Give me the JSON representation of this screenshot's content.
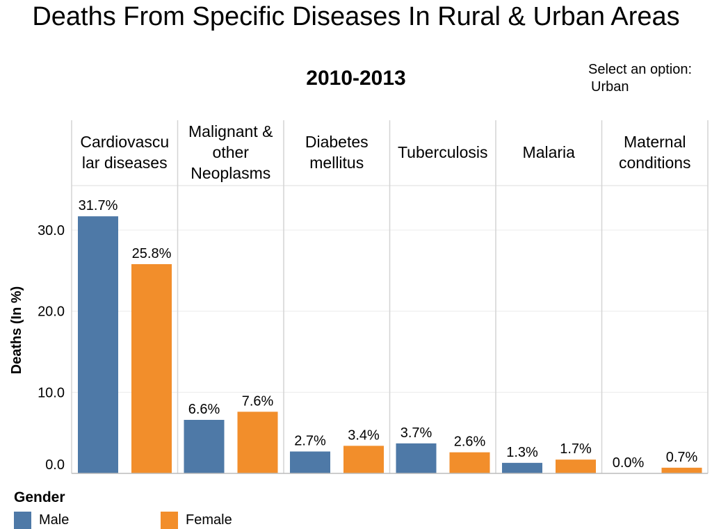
{
  "chart_data": {
    "type": "bar",
    "title": "Deaths From Specific Diseases In Rural & Urban Areas",
    "subtitle": "2010-2013",
    "ylabel": "Deaths (In %)",
    "ylim": [
      0,
      35
    ],
    "yticks": [
      "0.0",
      "10.0",
      "20.0",
      "30.0"
    ],
    "ytick_values": [
      0,
      10,
      20,
      30
    ],
    "grid": true,
    "categories": [
      "Cardiovascular diseases",
      "Malignant & other Neoplasms",
      "Diabetes mellitus",
      "Tuberculosis",
      "Malaria",
      "Maternal conditions"
    ],
    "category_label_lines": [
      [
        "Cardiovascu",
        "lar diseases"
      ],
      [
        "Malignant &",
        "other",
        "Neoplasms"
      ],
      [
        "Diabetes",
        "mellitus"
      ],
      [
        "Tuberculosis"
      ],
      [
        "Malaria"
      ],
      [
        "Maternal",
        "conditions"
      ]
    ],
    "series": [
      {
        "name": "Male",
        "color": "#4e79a7",
        "values": [
          31.7,
          6.6,
          2.7,
          3.7,
          1.3,
          0.0
        ],
        "labels": [
          "31.7%",
          "6.6%",
          "2.7%",
          "3.7%",
          "1.3%",
          "0.0%"
        ]
      },
      {
        "name": "Female",
        "color": "#f28e2b",
        "values": [
          25.8,
          7.6,
          3.4,
          2.6,
          1.7,
          0.7
        ],
        "labels": [
          "25.8%",
          "7.6%",
          "3.4%",
          "2.6%",
          "1.7%",
          "0.7%"
        ]
      }
    ],
    "legend": {
      "title": "Gender",
      "placement": "bottom-left"
    }
  },
  "filter": {
    "label": "Select an option:",
    "value": "Urban"
  }
}
